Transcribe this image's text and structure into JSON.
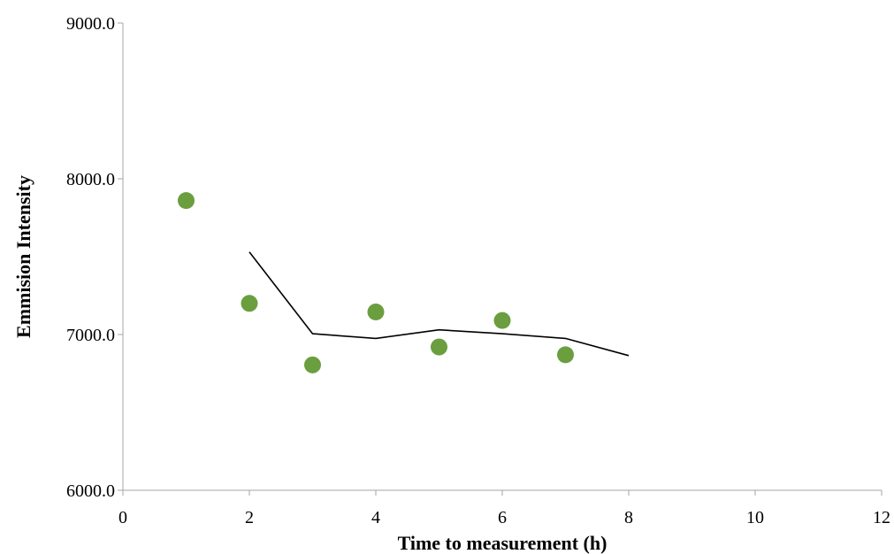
{
  "chart_data": {
    "type": "scatter",
    "xlabel": "Time to measurement (h)",
    "ylabel": "Emmision Intensity",
    "xlim": [
      0,
      12
    ],
    "ylim": [
      6000,
      9000
    ],
    "x_ticks": [
      0,
      2,
      4,
      6,
      8,
      10,
      12
    ],
    "y_ticks": [
      6000,
      7000,
      8000,
      9000
    ],
    "x_tick_labels": [
      "0",
      "2",
      "4",
      "6",
      "8",
      "10",
      "12"
    ],
    "y_tick_labels": [
      "6000.0",
      "7000.0",
      "8000.0",
      "9000.0"
    ],
    "grid": false,
    "series": [
      {
        "kind": "scatter",
        "color": "#6a9e3f",
        "points": [
          {
            "x": 1,
            "y": 7860
          },
          {
            "x": 2,
            "y": 7200
          },
          {
            "x": 3,
            "y": 6805
          },
          {
            "x": 4,
            "y": 7145
          },
          {
            "x": 5,
            "y": 6920
          },
          {
            "x": 6,
            "y": 7090
          },
          {
            "x": 7,
            "y": 6870
          }
        ]
      },
      {
        "kind": "line",
        "color": "#000000",
        "points": [
          {
            "x": 2,
            "y": 7530
          },
          {
            "x": 3,
            "y": 7005
          },
          {
            "x": 4,
            "y": 6975
          },
          {
            "x": 5,
            "y": 7030
          },
          {
            "x": 6,
            "y": 7005
          },
          {
            "x": 7,
            "y": 6975
          },
          {
            "x": 8,
            "y": 6865
          }
        ]
      }
    ]
  }
}
